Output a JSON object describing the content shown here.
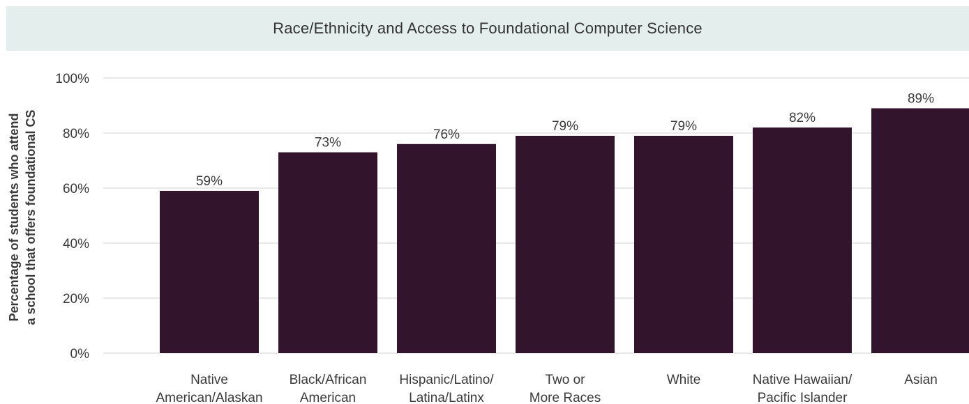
{
  "chart_data": {
    "type": "bar",
    "title": "Race/Ethnicity and Access to Foundational Computer Science",
    "ylabel_lines": [
      "Percentage of students who attend",
      "a school that offers foundational CS"
    ],
    "categories": [
      [
        "Native",
        "American/Alaskan"
      ],
      [
        "Black/African",
        "American"
      ],
      [
        "Hispanic/Latino/",
        "Latina/Latinx"
      ],
      [
        "Two or",
        "More Races"
      ],
      [
        "White"
      ],
      [
        "Native Hawaiian/",
        "Pacific Islander"
      ],
      [
        "Asian"
      ]
    ],
    "values": [
      59,
      73,
      76,
      79,
      79,
      82,
      89
    ],
    "value_labels": [
      "59%",
      "73%",
      "76%",
      "79%",
      "79%",
      "82%",
      "89%"
    ],
    "yticks": [
      0,
      20,
      40,
      60,
      80,
      100
    ],
    "ytick_labels": [
      "0%",
      "20%",
      "40%",
      "60%",
      "80%",
      "100%"
    ],
    "ylim": [
      0,
      100
    ],
    "grid": true,
    "bar_color": "#32152d",
    "grid_color": "#e2e2e2",
    "title_band_color": "#e4efed"
  }
}
